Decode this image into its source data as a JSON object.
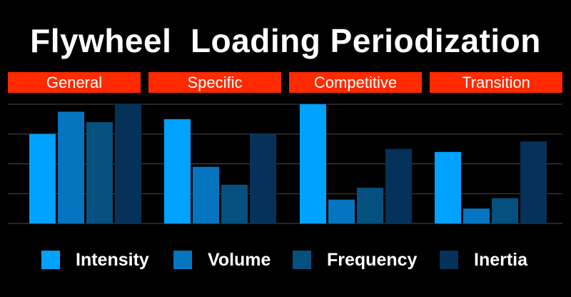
{
  "chart_data": {
    "type": "bar",
    "title": "Flywheel  Loading Periodization",
    "categories": [
      "General",
      "Specific",
      "Competitive",
      "Transition"
    ],
    "series": [
      {
        "name": "Intensity",
        "color": "#00a2ff",
        "values": [
          3.0,
          3.5,
          4.0,
          2.4
        ]
      },
      {
        "name": "Volume",
        "color": "#0575c0",
        "values": [
          3.75,
          1.9,
          0.8,
          0.5
        ]
      },
      {
        "name": "Frequency",
        "color": "#05507f",
        "values": [
          3.4,
          1.3,
          1.2,
          0.85
        ]
      },
      {
        "name": "Inertia",
        "color": "#06325a",
        "values": [
          4.0,
          3.0,
          2.5,
          2.75
        ]
      }
    ],
    "ylim": [
      0,
      4
    ],
    "grid": true,
    "legend_position": "bottom",
    "phase_color": "#ff2a00"
  }
}
